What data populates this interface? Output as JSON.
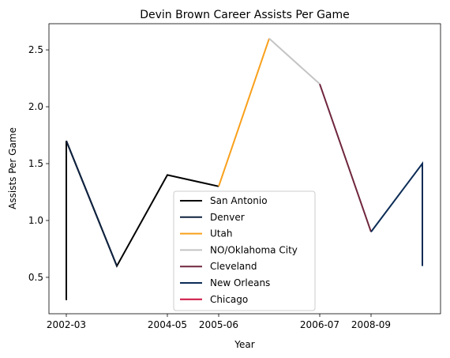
{
  "chart_data": {
    "type": "line",
    "title": "Devin Brown Career Assists Per Game",
    "xlabel": "Year",
    "ylabel": "Assists Per Game",
    "x_ticks": [
      "2002-03",
      "2004-05",
      "2005-06",
      "2006-07",
      "2008-09"
    ],
    "y_ticks": [
      "0.5",
      "1.0",
      "1.5",
      "2.0",
      "2.5"
    ],
    "ylim": [
      0.18,
      2.73
    ],
    "grid": false,
    "legend_position": "lower center",
    "series": [
      {
        "name": "San Antonio",
        "color": "#000000",
        "points": [
          [
            0,
            0.3
          ],
          [
            0,
            1.7
          ],
          [
            1,
            0.6
          ],
          [
            2,
            1.4
          ],
          [
            3,
            1.3
          ]
        ]
      },
      {
        "name": "Denver",
        "color": "#0e2240",
        "points": [
          [
            0,
            1.7
          ],
          [
            1,
            0.6
          ]
        ]
      },
      {
        "name": "Utah",
        "color": "#f9a01b",
        "points": [
          [
            3,
            1.3
          ],
          [
            4,
            2.6
          ]
        ]
      },
      {
        "name": "NO/Oklahoma City",
        "color": "#c4c4c4",
        "points": [
          [
            4,
            2.6
          ],
          [
            5,
            2.2
          ]
        ]
      },
      {
        "name": "Cleveland",
        "color": "#6f263d",
        "points": [
          [
            5,
            2.2
          ],
          [
            6,
            0.9
          ]
        ]
      },
      {
        "name": "New Orleans",
        "color": "#0c2c56",
        "points": [
          [
            6,
            0.9
          ],
          [
            7,
            1.5
          ],
          [
            7,
            0.6
          ]
        ]
      },
      {
        "name": "Chicago",
        "color": "#ce1141",
        "points": []
      }
    ]
  }
}
